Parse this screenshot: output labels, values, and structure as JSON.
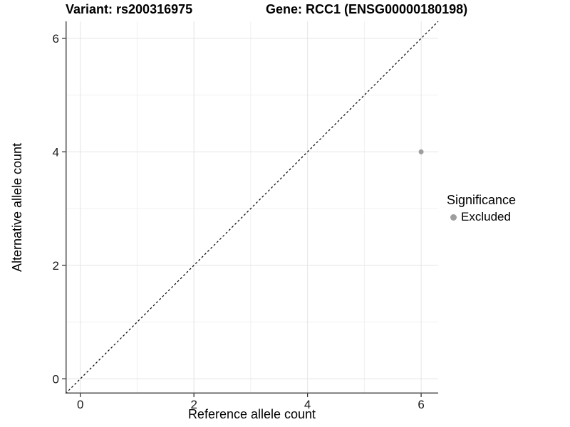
{
  "chart_data": {
    "type": "scatter",
    "titles": {
      "variant": "Variant: rs200316975",
      "gene": "Gene: RCC1 (ENSG00000180198)"
    },
    "xlabel": "Reference allele count",
    "ylabel": "Alternative allele count",
    "xlim": [
      -0.26,
      6.3
    ],
    "ylim": [
      -0.26,
      6.3
    ],
    "x_major_ticks": [
      0,
      2,
      4,
      6
    ],
    "y_major_ticks": [
      0,
      2,
      4,
      6
    ],
    "x_minor_gridlines": [
      1,
      3,
      5
    ],
    "y_minor_gridlines": [
      1,
      3,
      5
    ],
    "grid": "major and minor, light gray on white",
    "identity_line": {
      "slope": 1,
      "intercept": 0,
      "style": "dashed",
      "color": "#000000"
    },
    "series": [
      {
        "name": "Excluded",
        "color": "#9e9e9e",
        "points": [
          {
            "x": 6,
            "y": 4
          }
        ]
      }
    ],
    "legend": {
      "position": "right",
      "title": "Significance",
      "items": [
        {
          "label": "Excluded",
          "color": "#9e9e9e",
          "marker": "circle"
        }
      ]
    },
    "colors": {
      "background": "#ffffff",
      "axis_line": "#4d4d4d",
      "tick_mark": "#333333",
      "tick_label": "#1a1a1a",
      "grid_major": "#e4e4e4",
      "grid_minor": "#f0f0f0"
    }
  }
}
